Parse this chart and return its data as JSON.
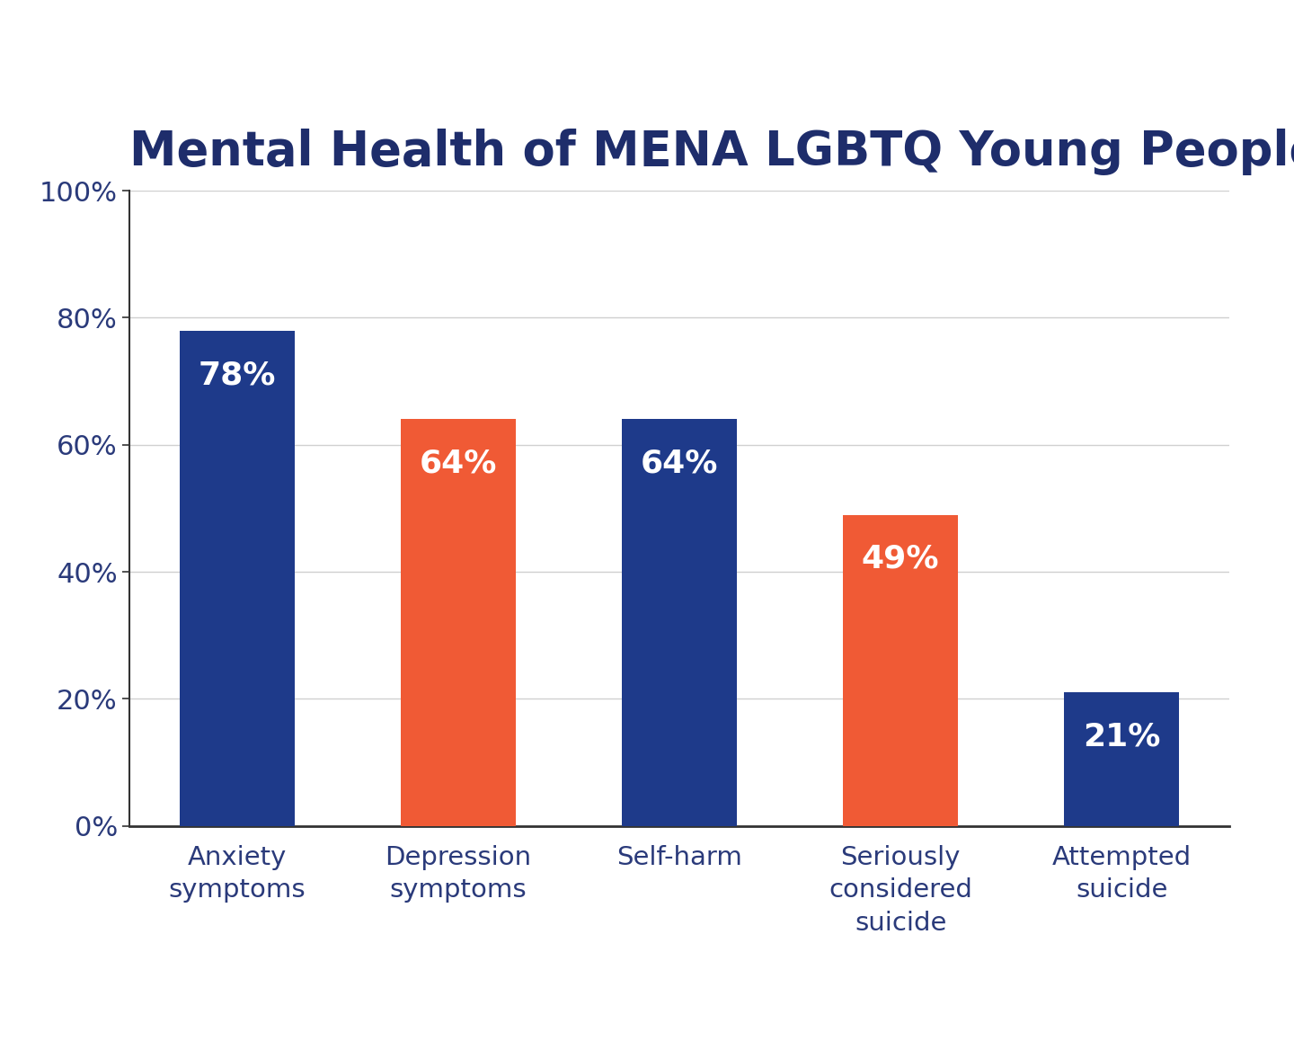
{
  "title": "Mental Health of MENA LGBTQ Young People",
  "categories": [
    "Anxiety\nsymptoms",
    "Depression\nsymptoms",
    "Self-harm",
    "Seriously\nconsidered\nsuicide",
    "Attempted\nsuicide"
  ],
  "values": [
    78,
    64,
    64,
    49,
    21
  ],
  "bar_colors": [
    "#1e3a8a",
    "#f05a35",
    "#1e3a8a",
    "#f05a35",
    "#1e3a8a"
  ],
  "label_color": "#ffffff",
  "title_color": "#1e2d6b",
  "axis_label_color": "#2a3a7a",
  "tick_label_color": "#2a3a7a",
  "background_color": "#ffffff",
  "ylim": [
    0,
    100
  ],
  "yticks": [
    0,
    20,
    40,
    60,
    80,
    100
  ],
  "ytick_labels": [
    "0%",
    "20%",
    "40%",
    "60%",
    "80%",
    "100%"
  ],
  "title_fontsize": 38,
  "bar_label_fontsize": 26,
  "tick_fontsize": 22,
  "xlabel_fontsize": 21,
  "bar_width": 0.52,
  "grid_color": "#d0d0d0",
  "spine_color": "#333333"
}
